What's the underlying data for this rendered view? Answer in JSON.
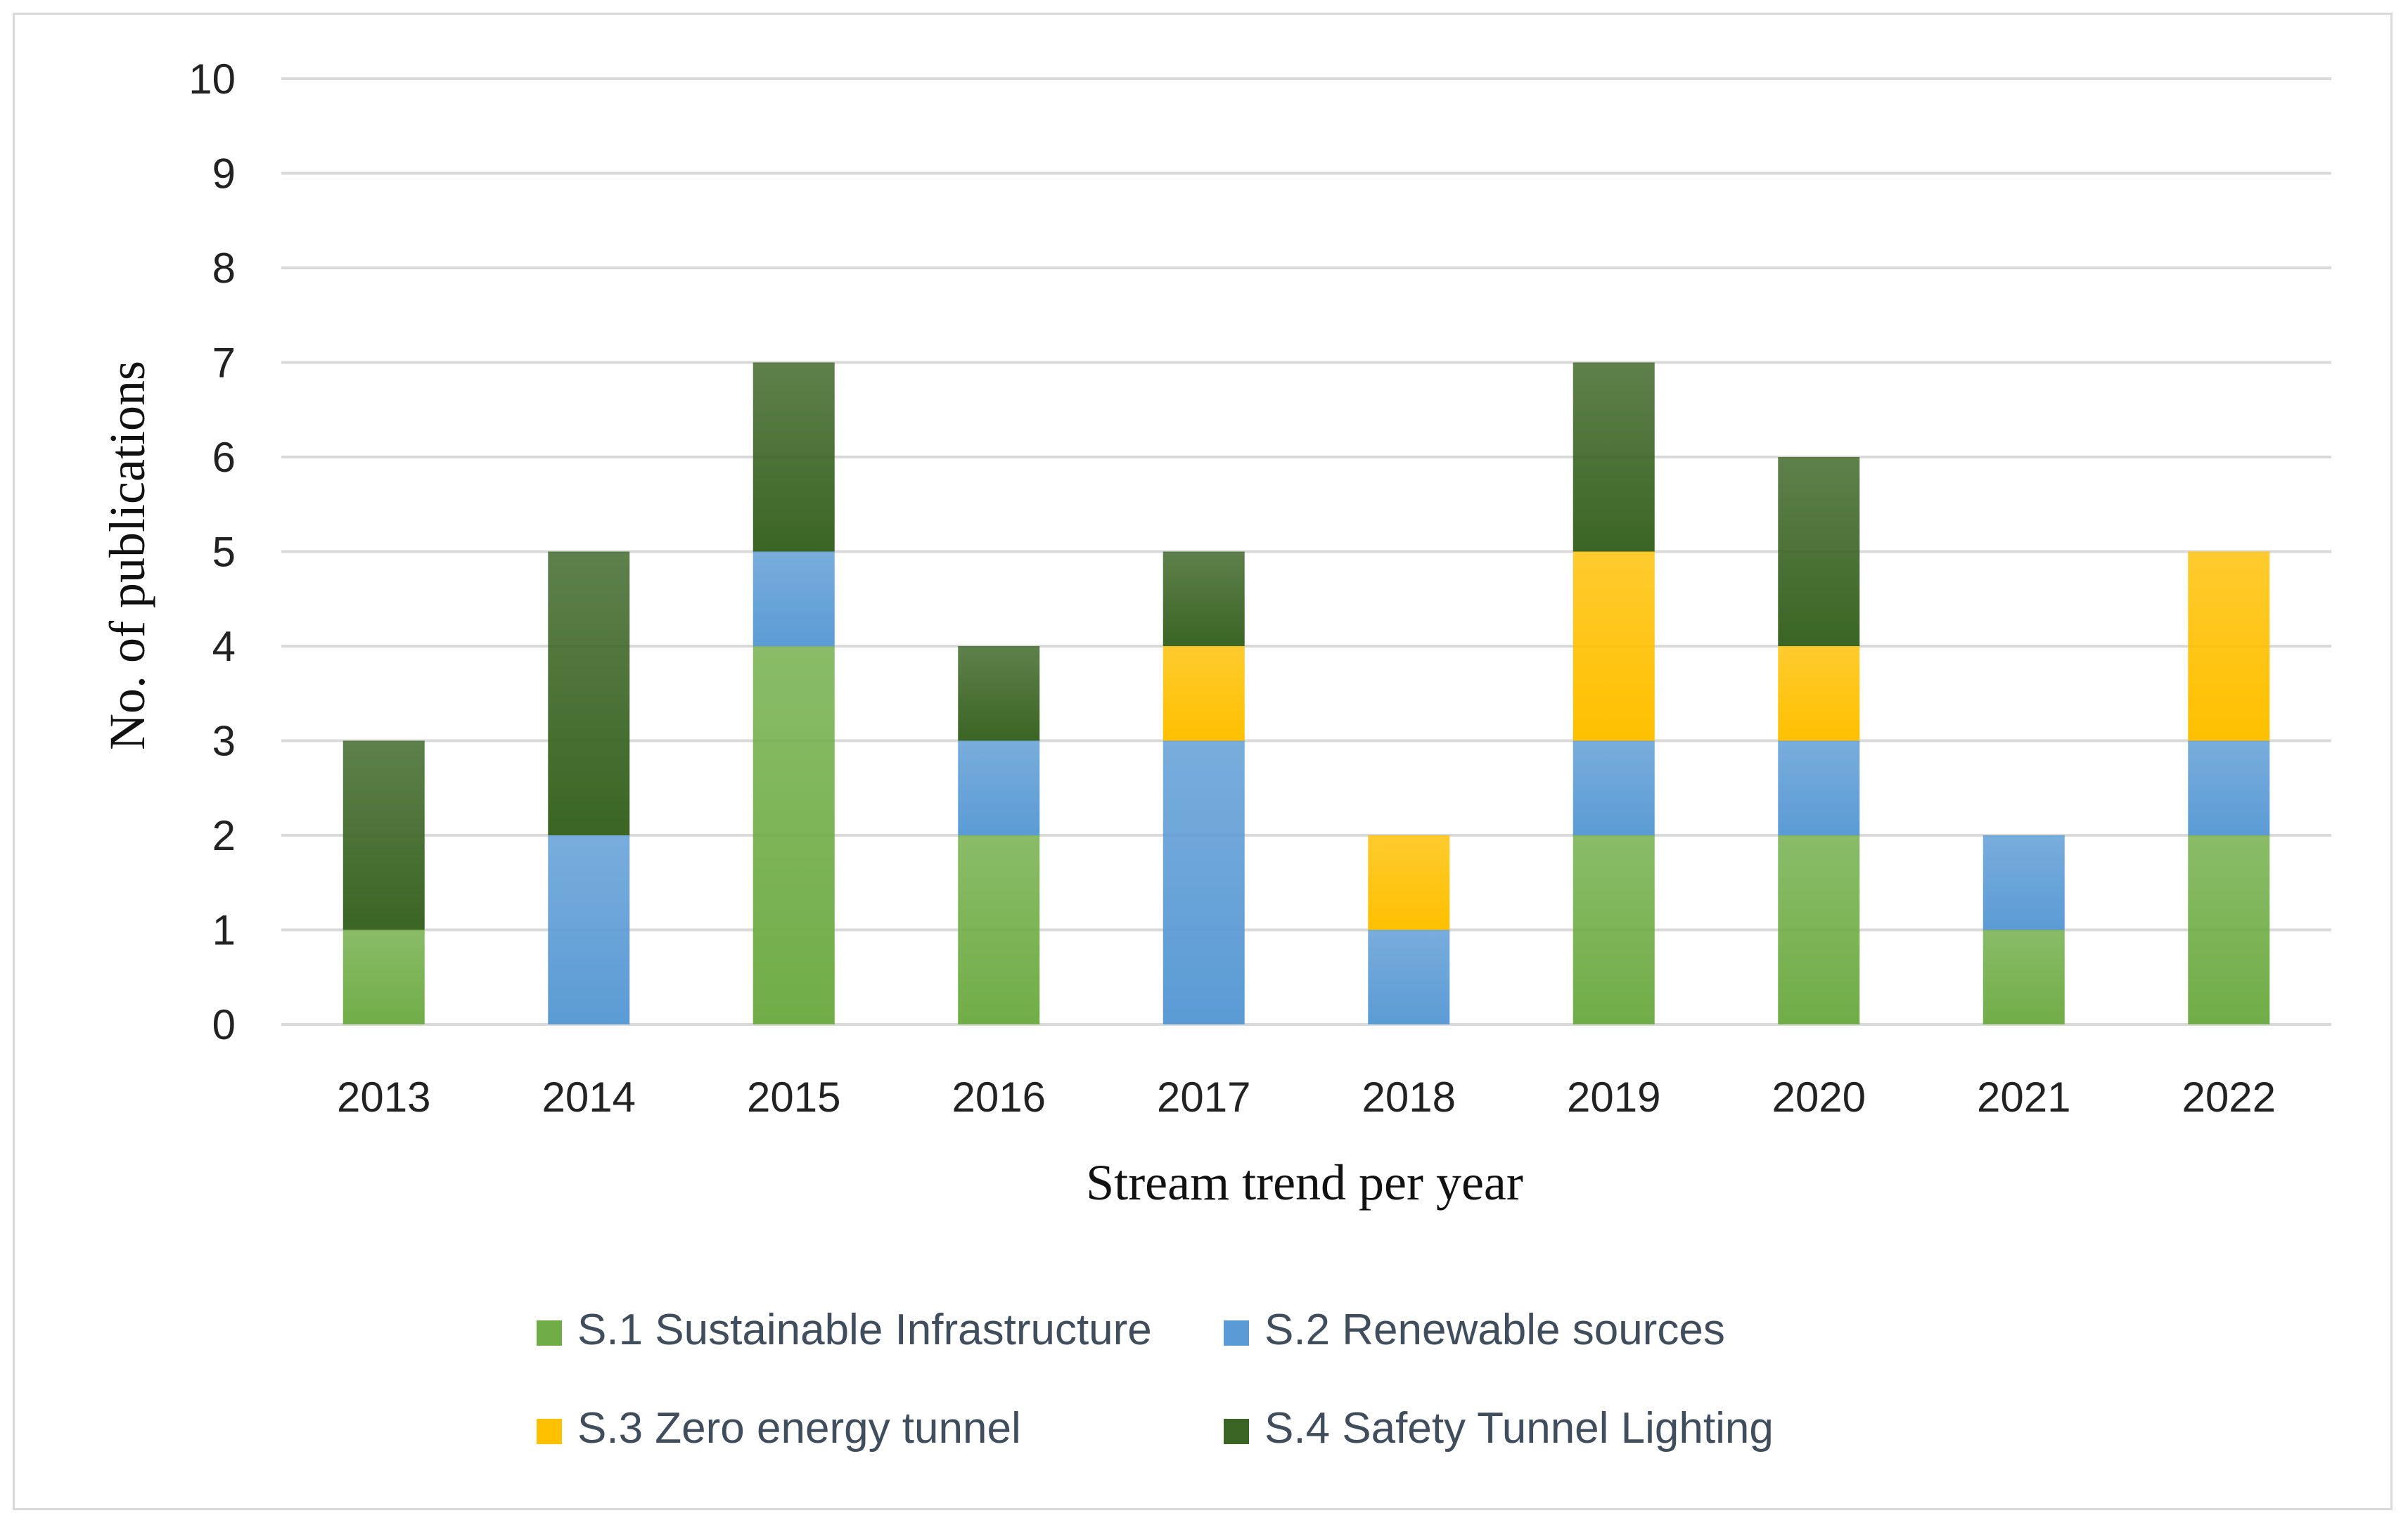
{
  "chart_data": {
    "type": "bar",
    "stacked": true,
    "title": "",
    "xlabel": "Stream trend per year",
    "ylabel": "No. of publications",
    "ylim": [
      0,
      10
    ],
    "yticks": [
      "0",
      "1",
      "2",
      "3",
      "4",
      "5",
      "6",
      "7",
      "8",
      "9",
      "10"
    ],
    "grid": true,
    "legend_position": "bottom",
    "categories": [
      "2013",
      "2014",
      "2015",
      "2016",
      "2017",
      "2018",
      "2019",
      "2020",
      "2021",
      "2022"
    ],
    "series": [
      {
        "name": "S.1 Sustainable Infrastructure",
        "color": "#70ad47",
        "values": [
          1,
          0,
          4,
          2,
          0,
          0,
          2,
          2,
          1,
          2
        ]
      },
      {
        "name": "S.2 Renewable sources",
        "color": "#5b9bd5",
        "values": [
          0,
          2,
          1,
          1,
          3,
          1,
          1,
          1,
          1,
          1
        ]
      },
      {
        "name": "S.3 Zero energy tunnel",
        "color": "#ffc000",
        "values": [
          0,
          0,
          0,
          0,
          1,
          1,
          2,
          1,
          0,
          2
        ]
      },
      {
        "name": "S.4 Safety Tunnel Lighting",
        "color": "#3b6524",
        "values": [
          2,
          3,
          2,
          1,
          1,
          0,
          2,
          2,
          0,
          0
        ]
      }
    ]
  }
}
